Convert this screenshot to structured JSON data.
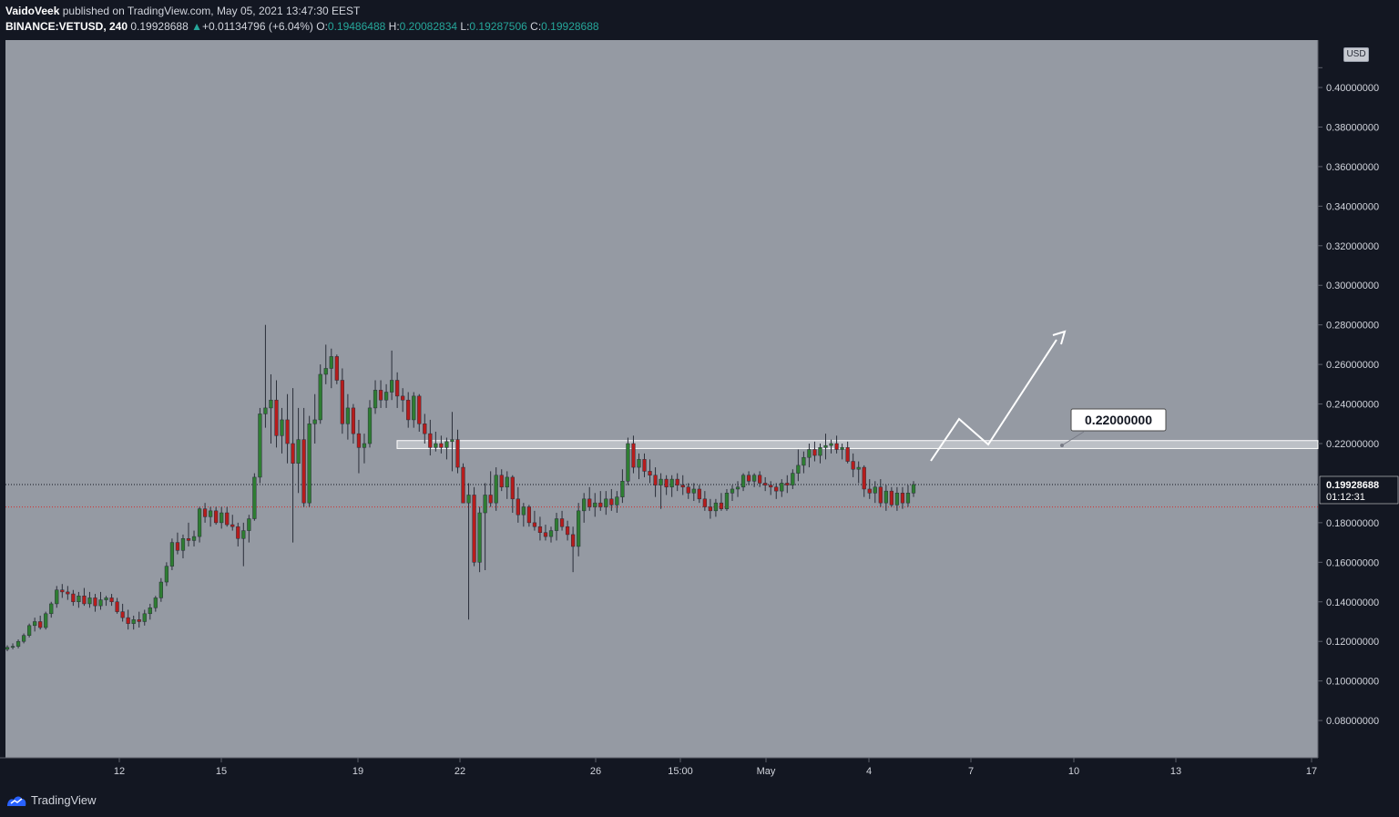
{
  "header": {
    "author": "VaidoVeek",
    "published_text": "published on TradingView.com, May 05, 2021 13:47:30 EEST",
    "symbol": "BINANCE:VETUSD, 240",
    "last": "0.19928688",
    "change": "+0.01134796 (+6.04%)",
    "o_label": "O:",
    "o_value": "0.19486488",
    "h_label": "H:",
    "h_value": "0.20082834",
    "l_label": "L:",
    "l_value": "0.19287506",
    "c_label": "C:",
    "c_value": "0.19928688"
  },
  "price_axis": {
    "currency": "USD"
  },
  "footer": {
    "brand": "TradingView"
  },
  "colors": {
    "background": "#959aa3",
    "up": "#2e7d32",
    "down": "#b71c1c",
    "axis_bg": "#131722",
    "last_price_tag": "#131722"
  },
  "chart_data": {
    "type": "candlestick",
    "title": "",
    "xlabel": "",
    "ylabel": "",
    "x_tick_labels": [
      "12",
      "15",
      "19",
      "22",
      "26",
      "15:00",
      "May",
      "4",
      "7",
      "10",
      "13",
      "17"
    ],
    "y_tick_labels": [
      "0.40000000",
      "0.38000000",
      "0.36000000",
      "0.34000000",
      "0.32000000",
      "0.30000000",
      "0.28000000",
      "0.26000000",
      "0.24000000",
      "0.22000000",
      "0.18000000",
      "0.16000000",
      "0.14000000",
      "0.12000000",
      "0.10000000",
      "0.08000000"
    ],
    "y_ticks": [
      0.4,
      0.38,
      0.36,
      0.34,
      0.32,
      0.3,
      0.28,
      0.26,
      0.24,
      0.22,
      0.18,
      0.16,
      0.14,
      0.12,
      0.1,
      0.08
    ],
    "ylim": [
      0.062,
      0.42
    ],
    "grid": false,
    "last_price": 0.19928688,
    "last_price_label": "0.19928688",
    "countdown": "01:12:31",
    "open_reference": 0.18794,
    "resistance_zone": [
      0.2175,
      0.2215
    ],
    "annotation_label": "0.22000000",
    "candles": [
      [
        0.116,
        0.118,
        0.115,
        0.117
      ],
      [
        0.117,
        0.119,
        0.116,
        0.1175
      ],
      [
        0.1175,
        0.121,
        0.1165,
        0.12
      ],
      [
        0.12,
        0.124,
        0.119,
        0.123
      ],
      [
        0.123,
        0.129,
        0.122,
        0.128
      ],
      [
        0.128,
        0.132,
        0.125,
        0.13
      ],
      [
        0.13,
        0.133,
        0.126,
        0.127
      ],
      [
        0.127,
        0.135,
        0.126,
        0.134
      ],
      [
        0.134,
        0.14,
        0.132,
        0.139
      ],
      [
        0.139,
        0.148,
        0.137,
        0.146
      ],
      [
        0.146,
        0.149,
        0.142,
        0.145
      ],
      [
        0.145,
        0.148,
        0.141,
        0.144
      ],
      [
        0.144,
        0.146,
        0.138,
        0.14
      ],
      [
        0.14,
        0.145,
        0.137,
        0.143
      ],
      [
        0.143,
        0.147,
        0.138,
        0.139
      ],
      [
        0.139,
        0.145,
        0.137,
        0.142
      ],
      [
        0.142,
        0.144,
        0.135,
        0.138
      ],
      [
        0.138,
        0.145,
        0.136,
        0.141
      ],
      [
        0.141,
        0.143,
        0.138,
        0.142
      ],
      [
        0.142,
        0.144,
        0.138,
        0.14
      ],
      [
        0.14,
        0.142,
        0.134,
        0.135
      ],
      [
        0.135,
        0.139,
        0.13,
        0.132
      ],
      [
        0.132,
        0.136,
        0.126,
        0.129
      ],
      [
        0.129,
        0.133,
        0.126,
        0.131
      ],
      [
        0.131,
        0.135,
        0.127,
        0.13
      ],
      [
        0.13,
        0.136,
        0.128,
        0.134
      ],
      [
        0.134,
        0.139,
        0.131,
        0.137
      ],
      [
        0.137,
        0.143,
        0.135,
        0.142
      ],
      [
        0.142,
        0.152,
        0.14,
        0.15
      ],
      [
        0.15,
        0.16,
        0.148,
        0.158
      ],
      [
        0.158,
        0.172,
        0.156,
        0.17
      ],
      [
        0.17,
        0.175,
        0.164,
        0.166
      ],
      [
        0.166,
        0.174,
        0.162,
        0.172
      ],
      [
        0.172,
        0.18,
        0.168,
        0.171
      ],
      [
        0.171,
        0.176,
        0.168,
        0.173
      ],
      [
        0.173,
        0.188,
        0.17,
        0.187
      ],
      [
        0.187,
        0.19,
        0.18,
        0.183
      ],
      [
        0.183,
        0.188,
        0.178,
        0.186
      ],
      [
        0.186,
        0.188,
        0.179,
        0.18
      ],
      [
        0.18,
        0.188,
        0.177,
        0.185
      ],
      [
        0.185,
        0.188,
        0.178,
        0.179
      ],
      [
        0.179,
        0.184,
        0.176,
        0.178
      ],
      [
        0.178,
        0.18,
        0.168,
        0.172
      ],
      [
        0.172,
        0.18,
        0.158,
        0.176
      ],
      [
        0.176,
        0.184,
        0.17,
        0.182
      ],
      [
        0.182,
        0.205,
        0.181,
        0.203
      ],
      [
        0.203,
        0.238,
        0.2,
        0.235
      ],
      [
        0.235,
        0.28,
        0.228,
        0.238
      ],
      [
        0.238,
        0.255,
        0.22,
        0.242
      ],
      [
        0.242,
        0.252,
        0.218,
        0.224
      ],
      [
        0.224,
        0.238,
        0.215,
        0.232
      ],
      [
        0.232,
        0.245,
        0.21,
        0.22
      ],
      [
        0.22,
        0.248,
        0.17,
        0.21
      ],
      [
        0.21,
        0.238,
        0.195,
        0.222
      ],
      [
        0.222,
        0.238,
        0.188,
        0.19
      ],
      [
        0.19,
        0.234,
        0.188,
        0.23
      ],
      [
        0.23,
        0.245,
        0.22,
        0.232
      ],
      [
        0.232,
        0.26,
        0.23,
        0.255
      ],
      [
        0.255,
        0.27,
        0.25,
        0.258
      ],
      [
        0.258,
        0.268,
        0.248,
        0.264
      ],
      [
        0.264,
        0.265,
        0.25,
        0.252
      ],
      [
        0.252,
        0.258,
        0.225,
        0.23
      ],
      [
        0.23,
        0.245,
        0.222,
        0.238
      ],
      [
        0.238,
        0.24,
        0.22,
        0.225
      ],
      [
        0.225,
        0.232,
        0.205,
        0.218
      ],
      [
        0.218,
        0.225,
        0.21,
        0.22
      ],
      [
        0.22,
        0.242,
        0.218,
        0.238
      ],
      [
        0.238,
        0.252,
        0.235,
        0.247
      ],
      [
        0.247,
        0.252,
        0.238,
        0.242
      ],
      [
        0.242,
        0.25,
        0.238,
        0.246
      ],
      [
        0.246,
        0.267,
        0.242,
        0.252
      ],
      [
        0.252,
        0.256,
        0.238,
        0.244
      ],
      [
        0.244,
        0.248,
        0.236,
        0.242
      ],
      [
        0.242,
        0.246,
        0.228,
        0.232
      ],
      [
        0.232,
        0.246,
        0.228,
        0.244
      ],
      [
        0.244,
        0.245,
        0.226,
        0.23
      ],
      [
        0.23,
        0.235,
        0.22,
        0.225
      ],
      [
        0.225,
        0.232,
        0.214,
        0.218
      ],
      [
        0.218,
        0.226,
        0.216,
        0.22
      ],
      [
        0.22,
        0.224,
        0.215,
        0.218
      ],
      [
        0.218,
        0.223,
        0.212,
        0.221
      ],
      [
        0.221,
        0.236,
        0.206,
        0.222
      ],
      [
        0.222,
        0.227,
        0.205,
        0.208
      ],
      [
        0.208,
        0.21,
        0.19,
        0.19
      ],
      [
        0.19,
        0.2,
        0.131,
        0.194
      ],
      [
        0.194,
        0.198,
        0.158,
        0.16
      ],
      [
        0.16,
        0.188,
        0.155,
        0.185
      ],
      [
        0.185,
        0.2,
        0.156,
        0.194
      ],
      [
        0.194,
        0.206,
        0.188,
        0.19
      ],
      [
        0.19,
        0.208,
        0.186,
        0.204
      ],
      [
        0.204,
        0.207,
        0.196,
        0.198
      ],
      [
        0.198,
        0.206,
        0.192,
        0.203
      ],
      [
        0.203,
        0.204,
        0.185,
        0.192
      ],
      [
        0.192,
        0.198,
        0.18,
        0.184
      ],
      [
        0.184,
        0.19,
        0.178,
        0.188
      ],
      [
        0.188,
        0.189,
        0.178,
        0.18
      ],
      [
        0.18,
        0.186,
        0.176,
        0.178
      ],
      [
        0.178,
        0.183,
        0.171,
        0.175
      ],
      [
        0.175,
        0.179,
        0.171,
        0.173
      ],
      [
        0.173,
        0.178,
        0.17,
        0.176
      ],
      [
        0.176,
        0.185,
        0.171,
        0.182
      ],
      [
        0.182,
        0.186,
        0.176,
        0.178
      ],
      [
        0.178,
        0.181,
        0.171,
        0.174
      ],
      [
        0.174,
        0.178,
        0.155,
        0.168
      ],
      [
        0.168,
        0.19,
        0.163,
        0.186
      ],
      [
        0.186,
        0.195,
        0.18,
        0.192
      ],
      [
        0.192,
        0.198,
        0.186,
        0.188
      ],
      [
        0.188,
        0.195,
        0.183,
        0.19
      ],
      [
        0.19,
        0.196,
        0.186,
        0.188
      ],
      [
        0.188,
        0.196,
        0.184,
        0.192
      ],
      [
        0.192,
        0.197,
        0.186,
        0.189
      ],
      [
        0.189,
        0.196,
        0.185,
        0.193
      ],
      [
        0.193,
        0.207,
        0.19,
        0.201
      ],
      [
        0.201,
        0.223,
        0.199,
        0.22
      ],
      [
        0.22,
        0.224,
        0.205,
        0.208
      ],
      [
        0.208,
        0.215,
        0.202,
        0.212
      ],
      [
        0.212,
        0.215,
        0.203,
        0.206
      ],
      [
        0.206,
        0.212,
        0.2,
        0.204
      ],
      [
        0.204,
        0.208,
        0.193,
        0.199
      ],
      [
        0.199,
        0.205,
        0.187,
        0.202
      ],
      [
        0.202,
        0.204,
        0.194,
        0.198
      ],
      [
        0.198,
        0.204,
        0.193,
        0.202
      ],
      [
        0.202,
        0.205,
        0.196,
        0.199
      ],
      [
        0.199,
        0.204,
        0.194,
        0.198
      ],
      [
        0.198,
        0.2,
        0.192,
        0.195
      ],
      [
        0.195,
        0.2,
        0.191,
        0.197
      ],
      [
        0.197,
        0.199,
        0.19,
        0.192
      ],
      [
        0.192,
        0.196,
        0.186,
        0.188
      ],
      [
        0.188,
        0.192,
        0.182,
        0.186
      ],
      [
        0.186,
        0.192,
        0.183,
        0.19
      ],
      [
        0.19,
        0.195,
        0.186,
        0.187
      ],
      [
        0.187,
        0.197,
        0.186,
        0.195
      ],
      [
        0.195,
        0.199,
        0.191,
        0.197
      ],
      [
        0.197,
        0.201,
        0.193,
        0.198
      ],
      [
        0.198,
        0.205,
        0.196,
        0.204
      ],
      [
        0.204,
        0.206,
        0.199,
        0.201
      ],
      [
        0.201,
        0.205,
        0.198,
        0.204
      ],
      [
        0.204,
        0.206,
        0.198,
        0.2
      ],
      [
        0.2,
        0.203,
        0.196,
        0.199
      ],
      [
        0.199,
        0.201,
        0.194,
        0.198
      ],
      [
        0.198,
        0.2,
        0.192,
        0.196
      ],
      [
        0.196,
        0.202,
        0.193,
        0.2
      ],
      [
        0.2,
        0.204,
        0.195,
        0.199
      ],
      [
        0.199,
        0.207,
        0.197,
        0.205
      ],
      [
        0.205,
        0.217,
        0.201,
        0.209
      ],
      [
        0.209,
        0.216,
        0.205,
        0.213
      ],
      [
        0.213,
        0.22,
        0.208,
        0.217
      ],
      [
        0.217,
        0.221,
        0.211,
        0.214
      ],
      [
        0.214,
        0.22,
        0.21,
        0.218
      ],
      [
        0.218,
        0.225,
        0.212,
        0.219
      ],
      [
        0.219,
        0.222,
        0.215,
        0.22
      ],
      [
        0.22,
        0.224,
        0.215,
        0.217
      ],
      [
        0.217,
        0.22,
        0.212,
        0.218
      ],
      [
        0.218,
        0.221,
        0.21,
        0.211
      ],
      [
        0.211,
        0.215,
        0.203,
        0.207
      ],
      [
        0.207,
        0.211,
        0.2,
        0.208
      ],
      [
        0.208,
        0.209,
        0.193,
        0.197
      ],
      [
        0.197,
        0.202,
        0.192,
        0.195
      ],
      [
        0.195,
        0.201,
        0.19,
        0.198
      ],
      [
        0.198,
        0.202,
        0.188,
        0.19
      ],
      [
        0.19,
        0.199,
        0.186,
        0.196
      ],
      [
        0.196,
        0.198,
        0.188,
        0.189
      ],
      [
        0.189,
        0.198,
        0.186,
        0.195
      ],
      [
        0.195,
        0.198,
        0.187,
        0.19
      ],
      [
        0.19,
        0.199,
        0.188,
        0.195
      ],
      [
        0.195,
        0.201,
        0.193,
        0.1993
      ]
    ]
  }
}
